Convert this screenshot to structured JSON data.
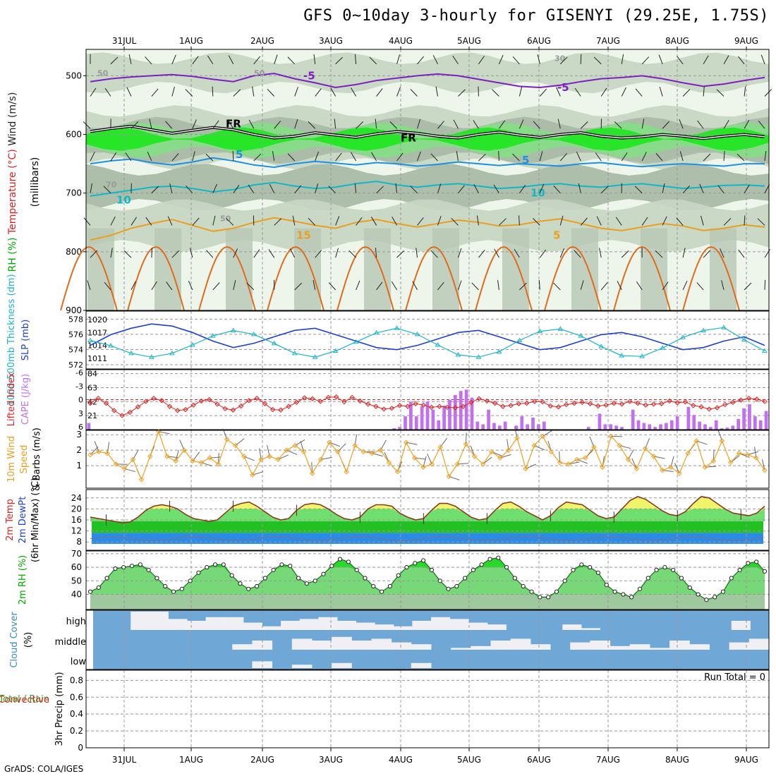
{
  "title": "GFS 0~10day 3-hourly for GISENYI (29.25E, 1.75S)",
  "footer": "GrADS: COLA/IGES",
  "date_labels": [
    "31JUL",
    "1AUG",
    "2AUG",
    "3AUG",
    "4AUG",
    "5AUG",
    "6AUG",
    "7AUG",
    "8AUG",
    "9AUG"
  ],
  "chart_data": [
    {
      "type": "heatmap",
      "panel": "upper-air",
      "ylabel_parts": [
        "RH (%)",
        "Temperature (°C)",
        "Wind (m/s)"
      ],
      "ylabel_unit": "(millibars)",
      "yticks": [
        500,
        600,
        700,
        800,
        900
      ],
      "ylim": [
        900,
        455
      ],
      "contour_labels": [
        "-5",
        "-5",
        "FR",
        "FR",
        "5",
        "5",
        "10",
        "10",
        "15",
        "5",
        "50",
        "50",
        "50",
        "70",
        "30"
      ],
      "isotherms": [
        {
          "name": "-5",
          "color": "#7d20c0",
          "p": [
            510,
            505,
            502,
            500,
            498,
            501,
            506,
            510,
            500,
            496,
            505,
            512,
            520,
            515,
            508,
            504,
            500,
            497,
            500,
            506,
            512,
            518,
            520,
            516,
            510,
            505,
            503,
            500,
            505,
            512,
            518,
            514,
            508,
            503
          ]
        },
        {
          "name": "FR",
          "color": "#000000",
          "p": [
            595,
            590,
            586,
            592,
            598,
            593,
            588,
            592,
            600,
            606,
            603,
            597,
            601,
            605,
            599,
            595,
            598,
            603,
            606,
            600,
            596,
            601,
            605,
            600,
            597,
            603,
            606,
            604,
            600,
            603,
            607,
            603,
            600,
            604
          ]
        },
        {
          "name": "5",
          "color": "#1e90e0",
          "p": [
            650,
            645,
            642,
            648,
            652,
            647,
            640,
            645,
            652,
            656,
            650,
            646,
            649,
            652,
            648,
            650,
            654,
            651,
            647,
            650,
            653,
            650,
            652,
            654,
            650,
            648,
            652,
            655,
            652,
            650,
            652,
            654,
            650,
            650
          ]
        },
        {
          "name": "10",
          "color": "#12b7c7",
          "p": [
            705,
            700,
            695,
            690,
            688,
            692,
            698,
            694,
            686,
            682,
            688,
            692,
            690,
            684,
            680,
            686,
            690,
            686,
            684,
            688,
            692,
            690,
            686,
            684,
            688,
            690,
            686,
            684,
            688,
            692,
            690,
            687,
            686,
            688
          ]
        },
        {
          "name": "15",
          "color": "#e8a020",
          "p": [
            780,
            772,
            760,
            752,
            745,
            755,
            765,
            760,
            750,
            742,
            748,
            755,
            760,
            750,
            745,
            752,
            758,
            752,
            746,
            750,
            756,
            754,
            748,
            744,
            752,
            760,
            764,
            758,
            752,
            756,
            764,
            760,
            754,
            758
          ]
        }
      ]
    },
    {
      "type": "line",
      "panel": "thickness-slp",
      "ylabel_left": "1000-500mb Thickness (dm)",
      "ylabel_right": "SLP (mb)",
      "yticks_left": [
        572,
        574,
        576,
        578
      ],
      "yticks_right": [
        1011,
        1014,
        1017,
        1020
      ],
      "series": [
        {
          "name": "SLP (mb)",
          "color": "#1f3fd0",
          "values": [
            1014,
            1016.5,
            1018,
            1019,
            1018.5,
            1017,
            1015,
            1013.5,
            1014.5,
            1016,
            1017.5,
            1018,
            1016.5,
            1015,
            1013.5,
            1013,
            1014,
            1015.5,
            1017,
            1017.5,
            1016,
            1014.5,
            1013,
            1013.5,
            1015,
            1016.5,
            1017,
            1016,
            1014.5,
            1013,
            1013.5,
            1015,
            1016,
            1014
          ]
        },
        {
          "name": "Thickness (dm)",
          "color": "#1bb5c8",
          "values": [
            575.2,
            574.5,
            573.5,
            573,
            573.5,
            574.6,
            575.8,
            576.5,
            576,
            574.8,
            573.5,
            573,
            573.8,
            575,
            576.2,
            576.8,
            576,
            574.6,
            573.3,
            573,
            573.7,
            575.2,
            576.4,
            576.7,
            575.8,
            574.4,
            573.2,
            573.1,
            574.2,
            575.6,
            576.5,
            576.9,
            575.3,
            573.8
          ]
        }
      ]
    },
    {
      "type": "bar",
      "panel": "cape-li",
      "ylabel_left": "Lifted Index",
      "ylabel_right": "CAPE (J/kg)",
      "yticks_left": [
        "-6",
        "-3",
        "0",
        "3",
        "6"
      ],
      "yticks_right": [
        "84",
        "63",
        "42",
        "21"
      ],
      "cape": [
        10,
        0,
        0,
        0,
        0,
        0,
        0,
        0,
        0,
        0,
        0,
        0,
        0,
        0,
        0,
        0,
        0,
        0,
        0,
        0,
        0,
        0,
        0,
        0,
        0,
        0,
        0,
        0,
        0,
        0,
        0,
        0,
        0,
        0,
        0,
        0,
        0,
        0,
        0,
        0,
        0,
        0,
        0,
        0,
        0,
        0,
        0,
        0,
        0,
        0,
        0,
        0,
        0,
        0,
        0,
        2,
        4,
        20,
        42,
        20,
        35,
        42,
        30,
        14,
        36,
        45,
        52,
        58,
        60,
        48,
        12,
        8,
        30,
        10,
        6,
        12,
        0,
        6,
        20,
        8,
        18,
        8,
        12,
        0,
        0,
        0,
        0,
        0,
        0,
        0,
        4,
        0,
        24,
        8,
        8,
        6,
        4,
        0,
        30,
        14,
        10,
        8,
        4,
        8,
        10,
        14,
        20,
        0,
        34,
        22,
        12,
        8,
        4,
        14,
        2,
        3,
        6,
        16,
        32,
        38,
        20,
        14,
        28
      ],
      "lifted_index": [
        0.8,
        -0.3,
        0.8,
        2.4,
        3.5,
        2.8,
        1.6,
        0.4,
        -0.3,
        0.2,
        1.5,
        2.4,
        2.2,
        1.2,
        0.3,
        0.0,
        1.0,
        2.0,
        2.3,
        1.4,
        0.2,
        -0.3,
        0.9,
        2.2,
        2.3,
        1.5,
        0.6,
        -0.4,
        -0.2,
        0.4,
        -0.5,
        -0.6,
        0.5,
        -0.5,
        0.3,
        1.0,
        1.5,
        2.1,
        1.9,
        1.3,
        1.5,
        0.9,
        1.2,
        1.7,
        1.5,
        1.7,
        1.8,
        1.5,
        0.6,
        -0.2,
        0.3,
        0.8,
        1.5,
        1.3,
        0.9,
        0.8,
        0.4,
        0.5,
        1.4,
        1.6,
        1.1,
        0.8,
        0.6,
        0.9,
        1.4,
        1.2,
        0.8,
        1.0,
        0.4,
        0.8,
        1.2,
        1.0,
        0.9,
        0.3,
        0.7,
        0.5,
        1.3,
        1.6,
        2.1,
        1.8,
        1.1,
        0.6,
        0.1,
        -0.3,
        -0.1,
        0.4
      ]
    },
    {
      "type": "line",
      "panel": "wind10m",
      "ylabel": "10m Wind Speed & Barbs (m/s)",
      "yticks": [
        1,
        2,
        3
      ],
      "values": [
        1.7,
        1.9,
        1.8,
        1.1,
        0.8,
        1.4,
        0.1,
        1.6,
        3.2,
        1.6,
        1.3,
        2.0,
        1.3,
        1.2,
        1.5,
        1.1,
        2.7,
        2.3,
        1.6,
        0.4,
        1.4,
        1.6,
        1.4,
        2.0,
        2.3,
        1.9,
        0.5,
        1.4,
        2.5,
        1.9,
        0.6,
        2.3,
        1.9,
        1.8,
        2.0,
        1.2,
        0.6,
        2.5,
        1.5,
        0.9,
        1.1,
        2.2,
        0.3,
        1.1,
        2.4,
        1.6,
        1.1,
        1.9,
        1.5,
        2.0,
        2.8,
        0.8,
        2.3,
        2.9,
        1.9,
        1.2,
        1.1,
        1.4,
        1.5,
        2.2,
        0.9,
        2.9,
        2.3,
        1.4,
        0.8,
        2.1,
        1.6,
        0.7,
        0.9,
        0.5,
        1.8,
        2.6,
        0.9,
        1.3,
        2.6,
        1.2,
        1.8,
        1.7,
        1.5,
        0.7
      ]
    },
    {
      "type": "area",
      "panel": "temp2m",
      "ylabel": "2m Temp 2m DewPt (6hr Min/Max) (°C)",
      "yticks": [
        8,
        12,
        16,
        20,
        24
      ],
      "temp": [
        17,
        16.5,
        16,
        15.5,
        15,
        15.2,
        17,
        19.5,
        21,
        21.5,
        21,
        20,
        18,
        16.5,
        16,
        15.5,
        16,
        18.5,
        21,
        22,
        22.5,
        21,
        19,
        17,
        16,
        16.5,
        19.5,
        21.5,
        22,
        21.5,
        20,
        18,
        16.5,
        16,
        17,
        20,
        21.5,
        21.5,
        21,
        18.5,
        17,
        16,
        16.5,
        19.5,
        22,
        22,
        21,
        19,
        17,
        16,
        16.5,
        19.5,
        22,
        22.5,
        21,
        19,
        17.5,
        16,
        17.5,
        20.5,
        22.5,
        22,
        21.5,
        19.5,
        17.5,
        16.5,
        17,
        20,
        23,
        24.5,
        23.5,
        21.5,
        19.5,
        18,
        17.5,
        19,
        22,
        24.5,
        24,
        22,
        20,
        18.5,
        18,
        17.5,
        18.5,
        21
      ]
    },
    {
      "type": "area",
      "panel": "rh2m",
      "ylabel": "2m RH (%)",
      "yticks": [
        40,
        50,
        60,
        70
      ],
      "values": [
        42,
        45,
        52,
        59,
        60,
        61,
        62,
        58,
        52,
        46,
        42,
        44,
        50,
        56,
        60,
        62,
        62,
        54,
        48,
        44,
        46,
        52,
        58,
        62,
        61,
        52,
        48,
        50,
        55,
        61,
        66,
        64,
        58,
        52,
        46,
        42,
        46,
        54,
        60,
        63,
        65,
        58,
        50,
        44,
        46,
        52,
        58,
        62,
        66,
        67,
        60,
        52,
        46,
        42,
        38,
        38,
        42,
        50,
        58,
        62,
        60,
        56,
        47,
        42,
        40,
        38,
        44,
        52,
        58,
        60,
        58,
        52,
        45,
        40,
        36,
        38,
        42,
        52,
        58,
        63,
        64,
        57
      ]
    },
    {
      "type": "bar",
      "panel": "cloud",
      "ylabel": "Cloud Cover (%)",
      "ytick_labels": [
        "high",
        "middle",
        "low"
      ]
    },
    {
      "type": "bar",
      "panel": "precip",
      "ylabel_main": "Total / Rain",
      "ylabel_sub": "Convective",
      "ylabel_unit": "3hr Precip (mm)",
      "yticks": [
        "0",
        "0.2",
        "0.4",
        "0.6",
        "0.8"
      ],
      "annotation": "Run Total = 0",
      "values": []
    }
  ]
}
